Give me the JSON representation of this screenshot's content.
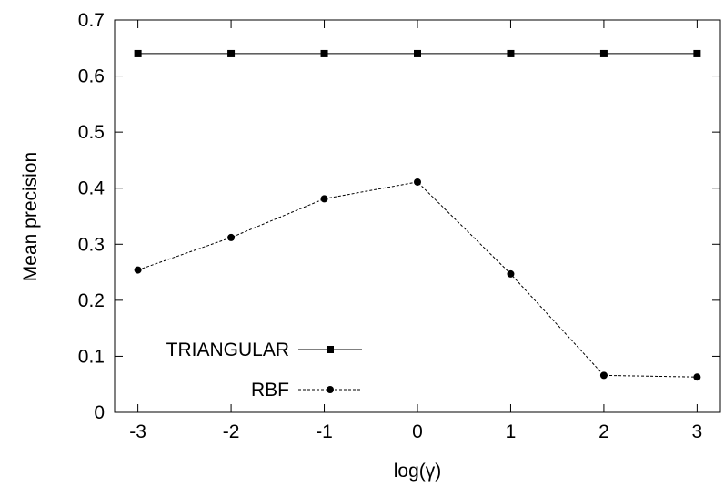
{
  "chart_data": {
    "type": "line",
    "title": "",
    "xlabel": "log(γ)",
    "ylabel": "Mean precision",
    "x": [
      -3,
      -2,
      -1,
      0,
      1,
      2,
      3
    ],
    "xlim": [
      -3.25,
      3.25
    ],
    "ylim": [
      0,
      0.7
    ],
    "xticks": [
      "-3",
      "-2",
      "-1",
      "0",
      "1",
      "2",
      "3"
    ],
    "yticks": [
      "0",
      "0.1",
      "0.2",
      "0.3",
      "0.4",
      "0.5",
      "0.6",
      "0.7"
    ],
    "grid": false,
    "legend_position": "bottom-left",
    "series": [
      {
        "name": "TRIANGULAR",
        "values": [
          0.64,
          0.64,
          0.64,
          0.64,
          0.64,
          0.64,
          0.64
        ],
        "line_style": "solid",
        "marker": "square",
        "color": "#000000"
      },
      {
        "name": "RBF",
        "values": [
          0.254,
          0.312,
          0.381,
          0.411,
          0.247,
          0.066,
          0.063
        ],
        "line_style": "dashed",
        "marker": "circle",
        "color": "#000000"
      }
    ]
  }
}
